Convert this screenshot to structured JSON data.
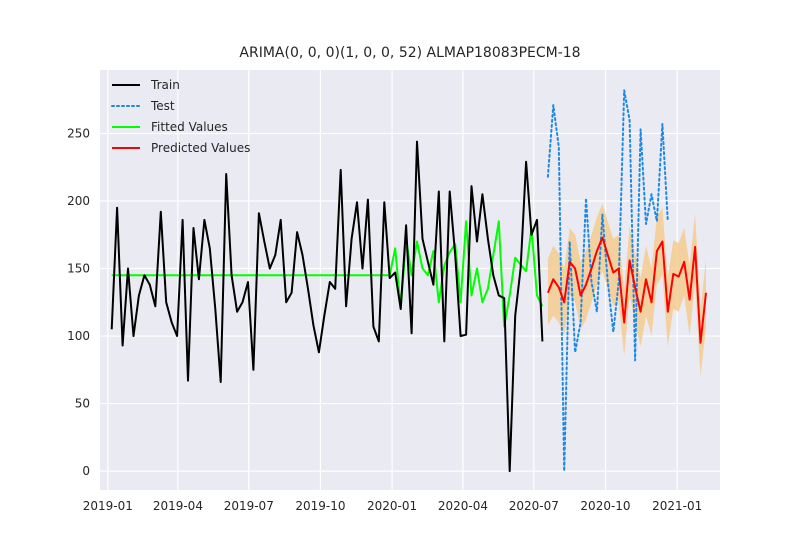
{
  "chart_data": {
    "type": "line",
    "title": "ARIMA(0, 0, 0)(1, 0, 0, 52) ALMAP18083PECM-18",
    "xlabel": "",
    "ylabel": "",
    "x_ticks": [
      "2019-01",
      "2019-04",
      "2019-07",
      "2019-10",
      "2020-01",
      "2020-04",
      "2020-07",
      "2020-10",
      "2021-01"
    ],
    "y_ticks": [
      0,
      50,
      100,
      150,
      200,
      250
    ],
    "xlim": [
      "2018-12-22",
      "2021-02-25"
    ],
    "ylim": [
      -14,
      297
    ],
    "grid": true,
    "legend_position": "upper-left",
    "background_color": "#EAEAF2",
    "series": [
      {
        "name": "Train",
        "color": "#000000",
        "style": "solid",
        "x": [
          "2019-01-06",
          "2019-01-13",
          "2019-01-20",
          "2019-01-27",
          "2019-02-03",
          "2019-02-10",
          "2019-02-17",
          "2019-02-24",
          "2019-03-03",
          "2019-03-10",
          "2019-03-17",
          "2019-03-24",
          "2019-03-31",
          "2019-04-07",
          "2019-04-14",
          "2019-04-21",
          "2019-04-28",
          "2019-05-05",
          "2019-05-12",
          "2019-05-19",
          "2019-05-26",
          "2019-06-02",
          "2019-06-09",
          "2019-06-16",
          "2019-06-23",
          "2019-06-30",
          "2019-07-07",
          "2019-07-14",
          "2019-07-21",
          "2019-07-28",
          "2019-08-04",
          "2019-08-11",
          "2019-08-18",
          "2019-08-25",
          "2019-09-01",
          "2019-09-08",
          "2019-09-15",
          "2019-09-22",
          "2019-09-29",
          "2019-10-06",
          "2019-10-13",
          "2019-10-20",
          "2019-10-27",
          "2019-11-03",
          "2019-11-10",
          "2019-11-17",
          "2019-11-24",
          "2019-12-01",
          "2019-12-08",
          "2019-12-15",
          "2019-12-22",
          "2019-12-29",
          "2020-01-05",
          "2020-01-12",
          "2020-01-19",
          "2020-01-26",
          "2020-02-02",
          "2020-02-09",
          "2020-02-16",
          "2020-02-23",
          "2020-03-01",
          "2020-03-08",
          "2020-03-15",
          "2020-03-22",
          "2020-03-29",
          "2020-04-05",
          "2020-04-12",
          "2020-04-19",
          "2020-04-26",
          "2020-05-03",
          "2020-05-10",
          "2020-05-17",
          "2020-05-24",
          "2020-05-31",
          "2020-06-07",
          "2020-06-14",
          "2020-06-21",
          "2020-06-28",
          "2020-07-05",
          "2020-07-12"
        ],
        "values": [
          105,
          195,
          93,
          150,
          100,
          130,
          145,
          138,
          122,
          192,
          125,
          110,
          100,
          186,
          67,
          180,
          142,
          186,
          165,
          120,
          66,
          220,
          145,
          118,
          125,
          140,
          75,
          191,
          170,
          150,
          160,
          186,
          125,
          132,
          177,
          160,
          135,
          108,
          88,
          115,
          140,
          135,
          223,
          122,
          172,
          199,
          150,
          201,
          107,
          96,
          199,
          143,
          147,
          120,
          182,
          102,
          244,
          172,
          155,
          138,
          207,
          96,
          207,
          160,
          100,
          101,
          211,
          170,
          205,
          172,
          145,
          130,
          128,
          0,
          115,
          150,
          229,
          175,
          186,
          96
        ]
      },
      {
        "name": "Test",
        "color": "#1E88E5",
        "style": "dotted",
        "x": [
          "2020-07-19",
          "2020-07-26",
          "2020-08-02",
          "2020-08-09",
          "2020-08-16",
          "2020-08-23",
          "2020-08-30",
          "2020-09-06",
          "2020-09-13",
          "2020-09-20",
          "2020-09-27",
          "2020-10-04",
          "2020-10-11",
          "2020-10-18",
          "2020-10-25",
          "2020-11-01",
          "2020-11-08",
          "2020-11-15",
          "2020-11-22",
          "2020-11-29",
          "2020-12-06",
          "2020-12-13",
          "2020-12-20"
        ],
        "values": [
          218,
          271,
          240,
          0,
          170,
          88,
          110,
          202,
          140,
          118,
          190,
          140,
          103,
          140,
          282,
          260,
          82,
          253,
          183,
          205,
          185,
          257,
          185
        ]
      },
      {
        "name": "Fitted Values",
        "color": "#00FF00",
        "style": "solid",
        "x": [
          "2019-01-06",
          "2019-12-29",
          "2020-01-05",
          "2020-01-12",
          "2020-01-19",
          "2020-01-26",
          "2020-02-02",
          "2020-02-09",
          "2020-02-16",
          "2020-02-23",
          "2020-03-01",
          "2020-03-08",
          "2020-03-15",
          "2020-03-22",
          "2020-03-29",
          "2020-04-05",
          "2020-04-12",
          "2020-04-19",
          "2020-04-26",
          "2020-05-03",
          "2020-05-10",
          "2020-05-17",
          "2020-05-24",
          "2020-05-31",
          "2020-06-07",
          "2020-06-14",
          "2020-06-21",
          "2020-06-28",
          "2020-07-05",
          "2020-07-12"
        ],
        "values": [
          145,
          145,
          165,
          120,
          172,
          145,
          170,
          150,
          145,
          163,
          125,
          152,
          162,
          168,
          125,
          185,
          130,
          150,
          125,
          135,
          160,
          185,
          107,
          130,
          158,
          153,
          148,
          180,
          130,
          122
        ]
      },
      {
        "name": "Predicted Values",
        "color": "#FF0000",
        "style": "solid",
        "x": [
          "2020-07-19",
          "2020-07-26",
          "2020-08-02",
          "2020-08-09",
          "2020-08-16",
          "2020-08-23",
          "2020-08-30",
          "2020-09-06",
          "2020-09-13",
          "2020-09-20",
          "2020-09-27",
          "2020-10-04",
          "2020-10-11",
          "2020-10-18",
          "2020-10-25",
          "2020-11-01",
          "2020-11-08",
          "2020-11-15",
          "2020-11-22",
          "2020-11-29",
          "2020-12-06",
          "2020-12-13",
          "2020-12-20",
          "2020-12-27",
          "2021-01-03",
          "2021-01-10",
          "2021-01-17",
          "2021-01-24",
          "2021-01-31",
          "2021-02-07"
        ],
        "values": [
          132,
          142,
          136,
          125,
          155,
          150,
          130,
          138,
          150,
          163,
          173,
          160,
          147,
          150,
          110,
          156,
          136,
          118,
          142,
          125,
          163,
          170,
          118,
          146,
          144,
          155,
          127,
          166,
          95,
          132
        ]
      }
    ],
    "confidence_band": {
      "color": "#F5CD8F",
      "lower": [
        108,
        115,
        110,
        100,
        130,
        125,
        105,
        112,
        125,
        138,
        148,
        135,
        122,
        125,
        85,
        130,
        110,
        92,
        115,
        100,
        138,
        145,
        92,
        120,
        118,
        130,
        100,
        140,
        70,
        106
      ],
      "upper": [
        157,
        167,
        161,
        150,
        180,
        175,
        155,
        163,
        175,
        188,
        198,
        185,
        172,
        175,
        135,
        181,
        161,
        143,
        167,
        150,
        188,
        195,
        143,
        171,
        169,
        180,
        152,
        191,
        120,
        157
      ]
    }
  }
}
